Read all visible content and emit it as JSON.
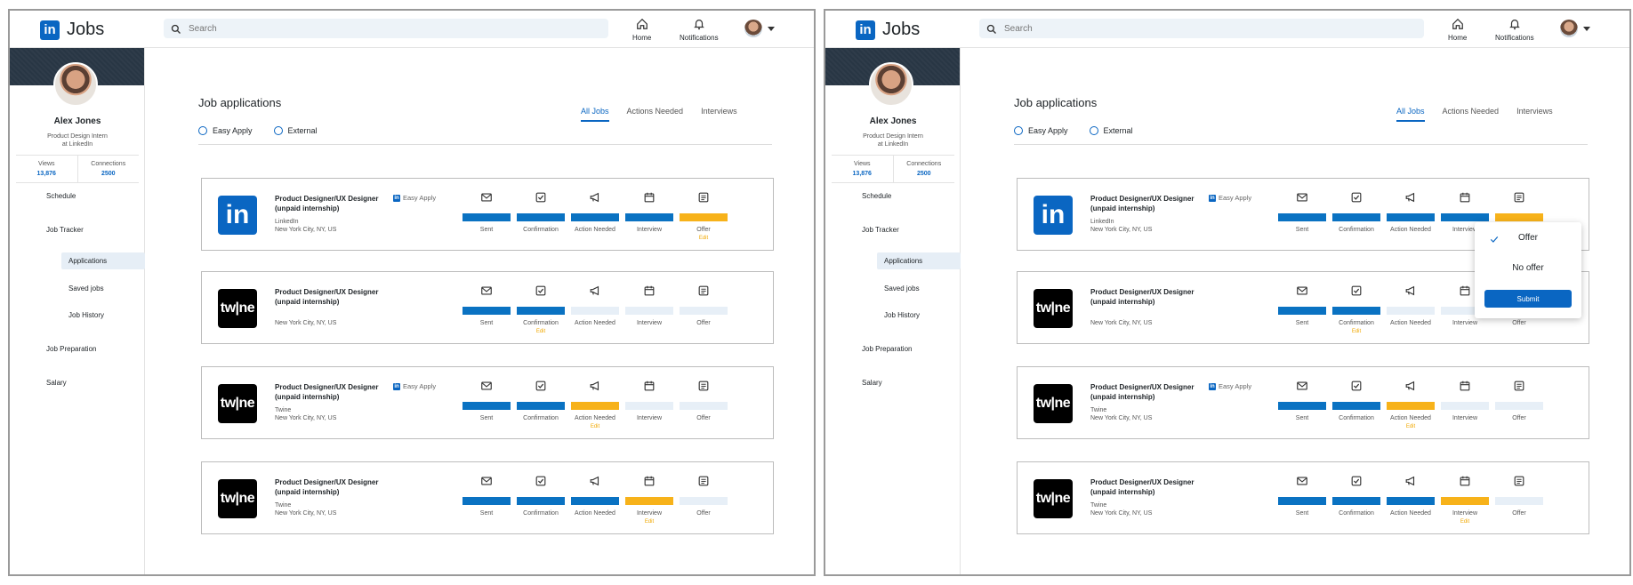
{
  "app": {
    "logo_mark": "in",
    "title": "Jobs"
  },
  "search": {
    "placeholder": "Search"
  },
  "nav": {
    "home": "Home",
    "notifications": "Notifications"
  },
  "profile": {
    "name": "Alex Jones",
    "title_line1": "Product Design Intern",
    "title_line2": "at LinkedIn",
    "views_label": "Views",
    "views": "13,876",
    "connections_label": "Connections",
    "connections": "2500"
  },
  "sidebar": {
    "schedule": "Schedule",
    "job_tracker": "Job Tracker",
    "applications": "Applications",
    "saved_jobs": "Saved jobs",
    "job_history": "Job History",
    "job_preparation": "Job Preparation",
    "salary": "Salary"
  },
  "main": {
    "title": "Job applications",
    "tabs": [
      "All Jobs",
      "Actions Needed",
      "Interviews"
    ],
    "filters": [
      "Easy Apply",
      "External"
    ]
  },
  "steps": [
    "Sent",
    "Confirmation",
    "Action Needed",
    "Interview",
    "Offer"
  ],
  "edit_label": "Edit",
  "easy_apply_label": "Easy Apply",
  "jobs": [
    {
      "logo": "in",
      "title_line1": "Product Designer/UX Designer",
      "title_line2": "(unpaid internship)",
      "company": "LinkedIn",
      "location": "New York City, NY, US",
      "easy_apply": true,
      "status": [
        "done",
        "done",
        "done",
        "done",
        "warn"
      ],
      "edit_step": 4
    },
    {
      "logo": "tw|ne",
      "title_line1": "Product Designer/UX Designer",
      "title_line2": "(unpaid internship)",
      "company": "",
      "location": "New York City, NY, US",
      "easy_apply": false,
      "status": [
        "done",
        "done",
        "empty",
        "empty",
        "empty"
      ],
      "edit_step": 1
    },
    {
      "logo": "tw|ne",
      "title_line1": "Product Designer/UX Designer",
      "title_line2": "(unpaid internship)",
      "company": "Twine",
      "location": "New York City, NY, US",
      "easy_apply": true,
      "status": [
        "done",
        "done",
        "warn",
        "empty",
        "empty"
      ],
      "edit_step": 2
    },
    {
      "logo": "tw|ne",
      "title_line1": "Product Designer/UX Designer",
      "title_line2": "(unpaid internship)",
      "company": "Twine",
      "location": "New York City, NY, US",
      "easy_apply": false,
      "status": [
        "done",
        "done",
        "done",
        "warn",
        "empty"
      ],
      "edit_step": 3
    }
  ],
  "dropdown": {
    "offer": "Offer",
    "no_offer": "No offer",
    "submit": "Submit"
  },
  "colors": {
    "accent": "#0a66c2",
    "warn": "#f7b21a",
    "empty": "#e7eff7",
    "banner": "#283644"
  }
}
